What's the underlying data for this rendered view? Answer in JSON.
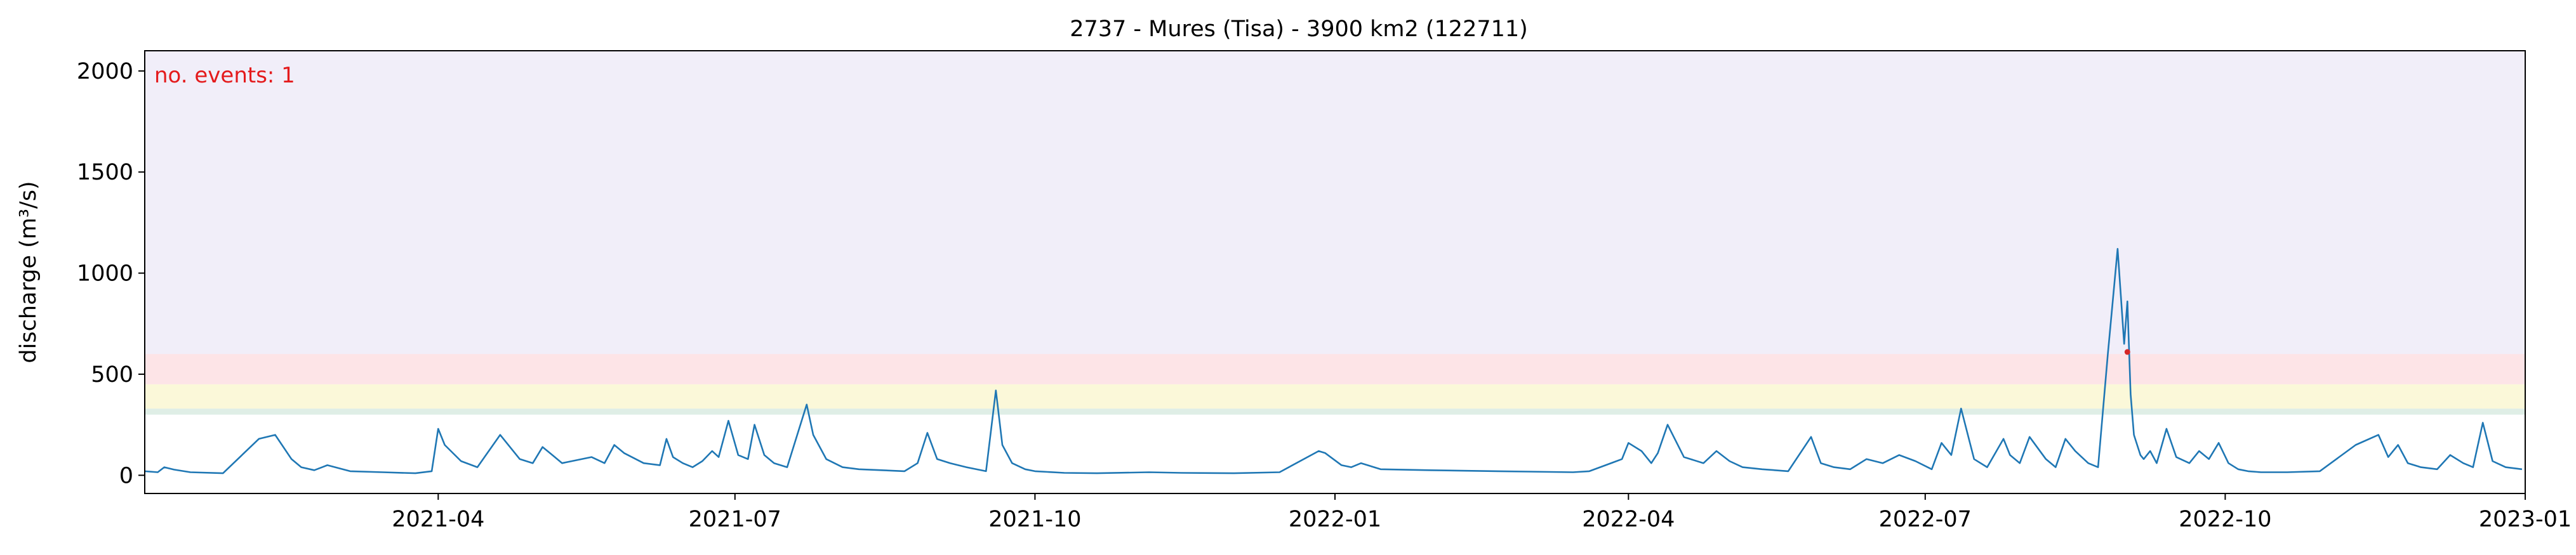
{
  "chart_data": {
    "type": "line",
    "title": "2737 - Mures (Tisa) - 3900 km2 (122711)",
    "xlabel": "",
    "ylabel": "discharge (m³/s)",
    "xlim": [
      "2021-01-01",
      "2023-01-01"
    ],
    "ylim": [
      -90,
      2100
    ],
    "y_ticks": [
      0,
      500,
      1000,
      1500,
      2000
    ],
    "x_ticks": [
      "2021-04-01",
      "2021-07-01",
      "2021-10-01",
      "2022-01-01",
      "2022-04-01",
      "2022-07-01",
      "2022-10-01",
      "2023-01-01"
    ],
    "x_tick_labels": [
      "2021-04",
      "2021-07",
      "2021-10",
      "2022-01",
      "2022-04",
      "2022-07",
      "2022-10",
      "2023-01"
    ],
    "annotation": "no. events: 1",
    "threshold_bands": [
      {
        "from": 300,
        "to": 330,
        "color": "#dfeee6"
      },
      {
        "from": 330,
        "to": 450,
        "color": "#fbf8d9"
      },
      {
        "from": 450,
        "to": 600,
        "color": "#fde4e7"
      },
      {
        "from": 600,
        "to": 2100,
        "color": "#f1eef9"
      }
    ],
    "series": [
      {
        "color": "#1f77b4",
        "x": [
          "2021-01-01",
          "2021-01-05",
          "2021-01-07",
          "2021-01-10",
          "2021-01-15",
          "2021-01-25",
          "2021-02-05",
          "2021-02-10",
          "2021-02-15",
          "2021-02-18",
          "2021-02-22",
          "2021-02-26",
          "2021-03-05",
          "2021-03-15",
          "2021-03-25",
          "2021-03-30",
          "2021-04-01",
          "2021-04-03",
          "2021-04-08",
          "2021-04-13",
          "2021-04-20",
          "2021-04-26",
          "2021-04-30",
          "2021-05-03",
          "2021-05-06",
          "2021-05-09",
          "2021-05-12",
          "2021-05-18",
          "2021-05-22",
          "2021-05-25",
          "2021-05-28",
          "2021-06-03",
          "2021-06-08",
          "2021-06-10",
          "2021-06-12",
          "2021-06-15",
          "2021-06-18",
          "2021-06-21",
          "2021-06-24",
          "2021-06-26",
          "2021-06-29",
          "2021-07-02",
          "2021-07-05",
          "2021-07-07",
          "2021-07-10",
          "2021-07-13",
          "2021-07-17",
          "2021-07-23",
          "2021-07-25",
          "2021-07-29",
          "2021-08-03",
          "2021-08-08",
          "2021-08-15",
          "2021-08-22",
          "2021-08-26",
          "2021-08-29",
          "2021-09-01",
          "2021-09-05",
          "2021-09-10",
          "2021-09-16",
          "2021-09-19",
          "2021-09-21",
          "2021-09-24",
          "2021-09-28",
          "2021-10-01",
          "2021-10-10",
          "2021-10-20",
          "2021-11-05",
          "2021-11-15",
          "2021-12-01",
          "2021-12-15",
          "2021-12-27",
          "2021-12-29",
          "2022-01-03",
          "2022-01-06",
          "2022-01-09",
          "2022-01-15",
          "2022-01-30",
          "2022-02-20",
          "2022-03-15",
          "2022-03-20",
          "2022-03-25",
          "2022-03-30",
          "2022-04-01",
          "2022-04-05",
          "2022-04-08",
          "2022-04-10",
          "2022-04-13",
          "2022-04-18",
          "2022-04-24",
          "2022-04-28",
          "2022-05-02",
          "2022-05-06",
          "2022-05-12",
          "2022-05-20",
          "2022-05-27",
          "2022-05-30",
          "2022-06-03",
          "2022-06-08",
          "2022-06-13",
          "2022-06-18",
          "2022-06-23",
          "2022-06-28",
          "2022-07-03",
          "2022-07-06",
          "2022-07-09",
          "2022-07-12",
          "2022-07-16",
          "2022-07-20",
          "2022-07-25",
          "2022-07-27",
          "2022-07-30",
          "2022-08-02",
          "2022-08-07",
          "2022-08-10",
          "2022-08-13",
          "2022-08-16",
          "2022-08-20",
          "2022-08-23",
          "2022-08-26",
          "2022-08-29",
          "2022-08-31",
          "2022-09-01",
          "2022-09-02",
          "2022-09-03",
          "2022-09-04",
          "2022-09-05",
          "2022-09-06",
          "2022-09-08",
          "2022-09-10",
          "2022-09-13",
          "2022-09-16",
          "2022-09-20",
          "2022-09-23",
          "2022-09-26",
          "2022-09-29",
          "2022-10-02",
          "2022-10-05",
          "2022-10-08",
          "2022-10-12",
          "2022-10-20",
          "2022-10-30",
          "2022-11-10",
          "2022-11-17",
          "2022-11-20",
          "2022-11-23",
          "2022-11-26",
          "2022-11-30",
          "2022-12-05",
          "2022-12-09",
          "2022-12-13",
          "2022-12-16",
          "2022-12-19",
          "2022-12-22",
          "2022-12-26",
          "2022-12-31"
        ],
        "y": [
          20,
          15,
          40,
          28,
          15,
          10,
          180,
          200,
          80,
          40,
          25,
          50,
          20,
          15,
          10,
          20,
          230,
          150,
          70,
          40,
          200,
          80,
          60,
          140,
          100,
          60,
          70,
          90,
          60,
          150,
          110,
          60,
          50,
          180,
          90,
          60,
          40,
          70,
          120,
          90,
          270,
          100,
          80,
          250,
          100,
          60,
          40,
          350,
          200,
          80,
          40,
          30,
          25,
          20,
          60,
          210,
          80,
          60,
          40,
          20,
          420,
          150,
          60,
          30,
          20,
          12,
          10,
          15,
          12,
          10,
          15,
          120,
          110,
          50,
          40,
          60,
          30,
          25,
          20,
          15,
          20,
          50,
          80,
          160,
          120,
          60,
          110,
          250,
          90,
          60,
          120,
          70,
          40,
          30,
          20,
          190,
          60,
          40,
          30,
          80,
          60,
          100,
          70,
          30,
          160,
          100,
          330,
          80,
          40,
          180,
          100,
          60,
          190,
          80,
          40,
          180,
          120,
          60,
          40,
          600,
          1120,
          650,
          860,
          400,
          200,
          150,
          100,
          80,
          120,
          60,
          230,
          90,
          60,
          120,
          80,
          160,
          60,
          30,
          20,
          15,
          15,
          20,
          150,
          200,
          90,
          150,
          60,
          40,
          30,
          100,
          60,
          40,
          260,
          70,
          40,
          30
        ]
      }
    ],
    "event_markers": [
      {
        "x": "2022-09-01",
        "y": 610,
        "color": "#d62728"
      }
    ]
  }
}
